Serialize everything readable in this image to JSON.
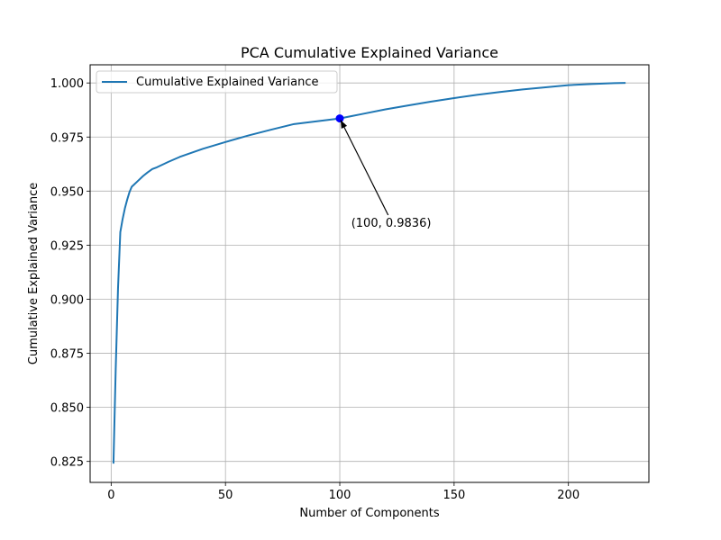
{
  "chart_data": {
    "type": "line",
    "title": "PCA Cumulative Explained Variance",
    "xlabel": "Number of Components",
    "ylabel": "Cumulative Explained Variance",
    "xlim": [
      -9.2,
      235.2
    ],
    "ylim": [
      0.8153,
      1.0084
    ],
    "x_ticks": [
      0,
      50,
      100,
      150,
      200
    ],
    "y_ticks": [
      0.825,
      0.85,
      0.875,
      0.9,
      0.925,
      0.95,
      0.975,
      1.0
    ],
    "x_tick_labels": [
      "0",
      "50",
      "100",
      "150",
      "200"
    ],
    "y_tick_labels": [
      "0.825",
      "0.850",
      "0.875",
      "0.900",
      "0.925",
      "0.950",
      "0.975",
      "1.000"
    ],
    "grid": true,
    "legend_position": "top-left",
    "series": [
      {
        "name": "Cumulative Explained Variance",
        "color": "#1f77b4",
        "x": [
          1,
          2,
          3,
          4,
          5,
          6,
          7,
          8,
          9,
          10,
          12,
          14,
          16,
          18,
          20,
          25,
          30,
          40,
          50,
          60,
          70,
          80,
          90,
          100,
          110,
          120,
          130,
          140,
          150,
          160,
          170,
          180,
          190,
          200,
          210,
          220,
          225
        ],
        "y": [
          0.824,
          0.868,
          0.905,
          0.931,
          0.937,
          0.942,
          0.946,
          0.9495,
          0.952,
          0.953,
          0.955,
          0.957,
          0.9587,
          0.9602,
          0.961,
          0.9635,
          0.9658,
          0.9695,
          0.9727,
          0.9757,
          0.9784,
          0.981,
          0.9823,
          0.9836,
          0.9857,
          0.9878,
          0.9896,
          0.9914,
          0.993,
          0.9945,
          0.9958,
          0.997,
          0.998,
          0.999,
          0.9995,
          0.9999,
          1.0
        ]
      }
    ],
    "highlight_point": {
      "x": 100,
      "y": 0.9836,
      "color": "#0000ff"
    },
    "annotation": {
      "text": "(100, 0.9836)",
      "x": 100,
      "y": 0.9836,
      "text_x": 105,
      "text_y": 0.9335
    }
  }
}
